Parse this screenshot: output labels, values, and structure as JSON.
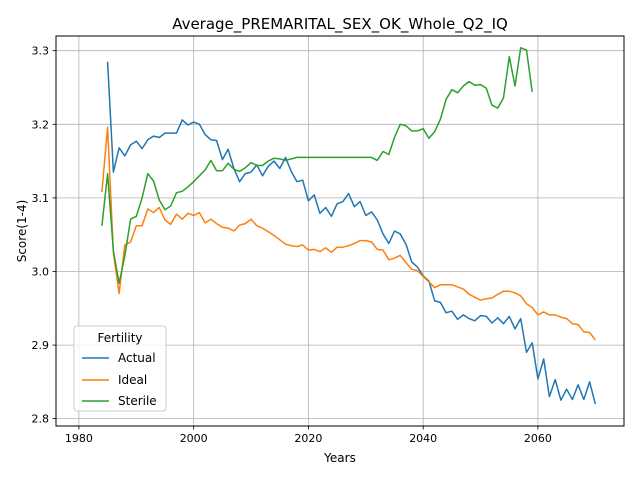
{
  "chart_data": {
    "type": "line",
    "title": "Average_PREMARITAL_SEX_OK_Whole_Q2_IQ",
    "xlabel": "Years",
    "ylabel": "Score(1-4)",
    "xlim": [
      1976,
      2075
    ],
    "ylim": [
      2.79,
      3.32
    ],
    "xticks": [
      1980,
      2000,
      2020,
      2040,
      2060
    ],
    "yticks": [
      2.8,
      2.9,
      3.0,
      3.1,
      3.2,
      3.3
    ],
    "xtick_labels": [
      "1980",
      "2000",
      "2020",
      "2040",
      "2060"
    ],
    "ytick_labels": [
      "2.8",
      "2.9",
      "3.0",
      "3.1",
      "3.2",
      "3.3"
    ],
    "grid": true,
    "legend": {
      "title": "Fertility",
      "placement": "lower-left"
    },
    "series": [
      {
        "name": "Actual",
        "color": "#1f77b4",
        "points": [
          [
            1985,
            3.285
          ],
          [
            1986,
            3.135
          ],
          [
            1987,
            3.168
          ],
          [
            1988,
            3.157
          ],
          [
            1989,
            3.172
          ],
          [
            1990,
            3.177
          ],
          [
            1991,
            3.167
          ],
          [
            1992,
            3.179
          ],
          [
            1993,
            3.184
          ],
          [
            1994,
            3.182
          ],
          [
            1995,
            3.188
          ],
          [
            1996,
            3.188
          ],
          [
            1997,
            3.188
          ],
          [
            1998,
            3.206
          ],
          [
            1999,
            3.199
          ],
          [
            2000,
            3.203
          ],
          [
            2001,
            3.2
          ],
          [
            2002,
            3.186
          ],
          [
            2003,
            3.179
          ],
          [
            2004,
            3.178
          ],
          [
            2005,
            3.152
          ],
          [
            2006,
            3.166
          ],
          [
            2007,
            3.14
          ],
          [
            2008,
            3.122
          ],
          [
            2009,
            3.133
          ],
          [
            2010,
            3.135
          ],
          [
            2011,
            3.145
          ],
          [
            2012,
            3.13
          ],
          [
            2013,
            3.143
          ],
          [
            2014,
            3.15
          ],
          [
            2015,
            3.14
          ],
          [
            2016,
            3.155
          ],
          [
            2017,
            3.136
          ],
          [
            2018,
            3.122
          ],
          [
            2019,
            3.124
          ],
          [
            2020,
            3.096
          ],
          [
            2021,
            3.104
          ],
          [
            2022,
            3.079
          ],
          [
            2023,
            3.087
          ],
          [
            2024,
            3.075
          ],
          [
            2025,
            3.092
          ],
          [
            2026,
            3.095
          ],
          [
            2027,
            3.106
          ],
          [
            2028,
            3.088
          ],
          [
            2029,
            3.095
          ],
          [
            2030,
            3.076
          ],
          [
            2031,
            3.081
          ],
          [
            2032,
            3.07
          ],
          [
            2033,
            3.051
          ],
          [
            2034,
            3.038
          ],
          [
            2035,
            3.055
          ],
          [
            2036,
            3.051
          ],
          [
            2037,
            3.037
          ],
          [
            2038,
            3.013
          ],
          [
            2039,
            3.006
          ],
          [
            2040,
            2.994
          ],
          [
            2041,
            2.987
          ],
          [
            2042,
            2.96
          ],
          [
            2043,
            2.958
          ],
          [
            2044,
            2.944
          ],
          [
            2045,
            2.946
          ],
          [
            2046,
            2.935
          ],
          [
            2047,
            2.941
          ],
          [
            2048,
            2.936
          ],
          [
            2049,
            2.933
          ],
          [
            2050,
            2.94
          ],
          [
            2051,
            2.939
          ],
          [
            2052,
            2.93
          ],
          [
            2053,
            2.937
          ],
          [
            2054,
            2.929
          ],
          [
            2055,
            2.939
          ],
          [
            2056,
            2.922
          ],
          [
            2057,
            2.936
          ],
          [
            2058,
            2.89
          ],
          [
            2059,
            2.903
          ],
          [
            2060,
            2.854
          ],
          [
            2061,
            2.881
          ],
          [
            2062,
            2.83
          ],
          [
            2063,
            2.853
          ],
          [
            2064,
            2.825
          ],
          [
            2065,
            2.84
          ],
          [
            2066,
            2.826
          ],
          [
            2067,
            2.846
          ],
          [
            2068,
            2.826
          ],
          [
            2069,
            2.85
          ],
          [
            2070,
            2.82
          ]
        ]
      },
      {
        "name": "Ideal",
        "color": "#ff7f0e",
        "points": [
          [
            1984,
            3.108
          ],
          [
            1985,
            3.196
          ],
          [
            1986,
            3.025
          ],
          [
            1987,
            2.97
          ],
          [
            1988,
            3.036
          ],
          [
            1989,
            3.04
          ],
          [
            1990,
            3.062
          ],
          [
            1991,
            3.062
          ],
          [
            1992,
            3.085
          ],
          [
            1993,
            3.08
          ],
          [
            1994,
            3.087
          ],
          [
            1995,
            3.07
          ],
          [
            1996,
            3.064
          ],
          [
            1997,
            3.078
          ],
          [
            1998,
            3.071
          ],
          [
            1999,
            3.079
          ],
          [
            2000,
            3.076
          ],
          [
            2001,
            3.08
          ],
          [
            2002,
            3.066
          ],
          [
            2003,
            3.071
          ],
          [
            2004,
            3.065
          ],
          [
            2005,
            3.06
          ],
          [
            2006,
            3.059
          ],
          [
            2007,
            3.055
          ],
          [
            2008,
            3.063
          ],
          [
            2009,
            3.065
          ],
          [
            2010,
            3.071
          ],
          [
            2011,
            3.062
          ],
          [
            2012,
            3.059
          ],
          [
            2013,
            3.054
          ],
          [
            2014,
            3.049
          ],
          [
            2015,
            3.043
          ],
          [
            2016,
            3.037
          ],
          [
            2017,
            3.035
          ],
          [
            2018,
            3.034
          ],
          [
            2019,
            3.036
          ],
          [
            2020,
            3.029
          ],
          [
            2021,
            3.03
          ],
          [
            2022,
            3.027
          ],
          [
            2023,
            3.032
          ],
          [
            2024,
            3.026
          ],
          [
            2025,
            3.033
          ],
          [
            2026,
            3.033
          ],
          [
            2027,
            3.035
          ],
          [
            2028,
            3.038
          ],
          [
            2029,
            3.042
          ],
          [
            2030,
            3.042
          ],
          [
            2031,
            3.04
          ],
          [
            2032,
            3.03
          ],
          [
            2033,
            3.029
          ],
          [
            2034,
            3.016
          ],
          [
            2035,
            3.018
          ],
          [
            2036,
            3.022
          ],
          [
            2037,
            3.012
          ],
          [
            2038,
            3.003
          ],
          [
            2039,
            3.001
          ],
          [
            2040,
            2.993
          ],
          [
            2041,
            2.986
          ],
          [
            2042,
            2.978
          ],
          [
            2043,
            2.982
          ],
          [
            2044,
            2.982
          ],
          [
            2045,
            2.982
          ],
          [
            2046,
            2.979
          ],
          [
            2047,
            2.976
          ],
          [
            2048,
            2.969
          ],
          [
            2049,
            2.965
          ],
          [
            2050,
            2.961
          ],
          [
            2051,
            2.963
          ],
          [
            2052,
            2.964
          ],
          [
            2053,
            2.969
          ],
          [
            2054,
            2.973
          ],
          [
            2055,
            2.973
          ],
          [
            2056,
            2.971
          ],
          [
            2057,
            2.967
          ],
          [
            2058,
            2.956
          ],
          [
            2059,
            2.951
          ],
          [
            2060,
            2.941
          ],
          [
            2061,
            2.945
          ],
          [
            2062,
            2.941
          ],
          [
            2063,
            2.941
          ],
          [
            2064,
            2.938
          ],
          [
            2065,
            2.936
          ],
          [
            2066,
            2.929
          ],
          [
            2067,
            2.928
          ],
          [
            2068,
            2.918
          ],
          [
            2069,
            2.917
          ],
          [
            2070,
            2.907
          ]
        ]
      },
      {
        "name": "Sterile",
        "color": "#2ca02c",
        "points": [
          [
            1984,
            3.062
          ],
          [
            1985,
            3.133
          ],
          [
            1986,
            3.028
          ],
          [
            1987,
            2.984
          ],
          [
            1988,
            3.021
          ],
          [
            1989,
            3.071
          ],
          [
            1990,
            3.075
          ],
          [
            1991,
            3.1
          ],
          [
            1992,
            3.133
          ],
          [
            1993,
            3.123
          ],
          [
            1994,
            3.097
          ],
          [
            1995,
            3.084
          ],
          [
            1996,
            3.089
          ],
          [
            1997,
            3.107
          ],
          [
            1998,
            3.109
          ],
          [
            1999,
            3.115
          ],
          [
            2000,
            3.122
          ],
          [
            2001,
            3.13
          ],
          [
            2002,
            3.138
          ],
          [
            2003,
            3.151
          ],
          [
            2004,
            3.137
          ],
          [
            2005,
            3.137
          ],
          [
            2006,
            3.147
          ],
          [
            2007,
            3.139
          ],
          [
            2008,
            3.136
          ],
          [
            2009,
            3.141
          ],
          [
            2010,
            3.148
          ],
          [
            2011,
            3.144
          ],
          [
            2012,
            3.144
          ],
          [
            2013,
            3.15
          ],
          [
            2014,
            3.154
          ],
          [
            2015,
            3.153
          ],
          [
            2016,
            3.151
          ],
          [
            2017,
            3.153
          ],
          [
            2018,
            3.155
          ],
          [
            2019,
            3.155
          ],
          [
            2020,
            3.155
          ],
          [
            2021,
            3.155
          ],
          [
            2022,
            3.155
          ],
          [
            2023,
            3.155
          ],
          [
            2024,
            3.155
          ],
          [
            2025,
            3.155
          ],
          [
            2026,
            3.155
          ],
          [
            2027,
            3.155
          ],
          [
            2028,
            3.155
          ],
          [
            2029,
            3.155
          ],
          [
            2030,
            3.155
          ],
          [
            2031,
            3.155
          ],
          [
            2032,
            3.151
          ],
          [
            2033,
            3.163
          ],
          [
            2034,
            3.159
          ],
          [
            2035,
            3.182
          ],
          [
            2036,
            3.2
          ],
          [
            2037,
            3.198
          ],
          [
            2038,
            3.191
          ],
          [
            2039,
            3.191
          ],
          [
            2040,
            3.194
          ],
          [
            2041,
            3.181
          ],
          [
            2042,
            3.19
          ],
          [
            2043,
            3.207
          ],
          [
            2044,
            3.234
          ],
          [
            2045,
            3.247
          ],
          [
            2046,
            3.243
          ],
          [
            2047,
            3.252
          ],
          [
            2048,
            3.258
          ],
          [
            2049,
            3.253
          ],
          [
            2050,
            3.254
          ],
          [
            2051,
            3.249
          ],
          [
            2052,
            3.226
          ],
          [
            2053,
            3.222
          ],
          [
            2054,
            3.236
          ],
          [
            2055,
            3.292
          ],
          [
            2056,
            3.252
          ],
          [
            2057,
            3.304
          ],
          [
            2058,
            3.301
          ],
          [
            2059,
            3.244
          ]
        ]
      }
    ]
  }
}
